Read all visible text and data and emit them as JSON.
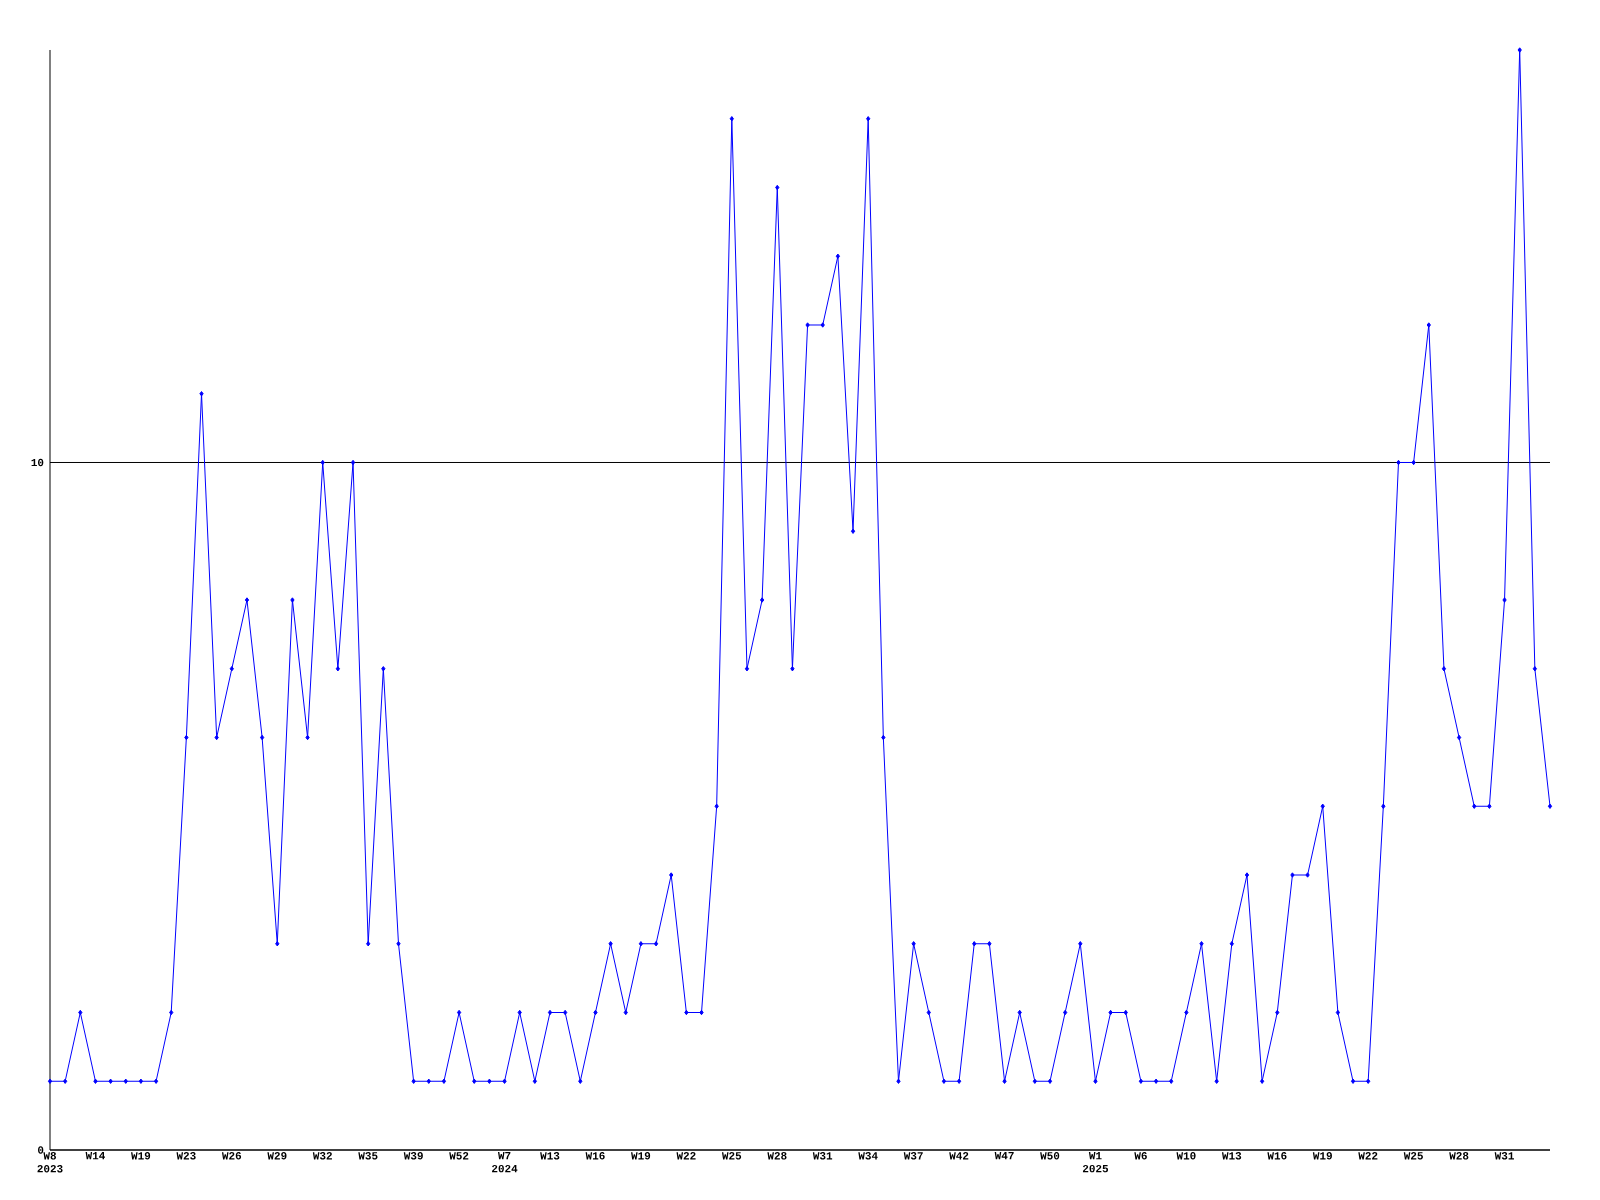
{
  "chart_data": {
    "type": "line",
    "color": "#0000ff",
    "marker": "diamond",
    "grid": "y",
    "ylim": [
      0,
      16
    ],
    "yticks": [
      0,
      10
    ],
    "categories": [
      "W8 2023",
      null,
      null,
      "W14",
      null,
      null,
      "W19",
      null,
      null,
      "W23",
      null,
      null,
      "W26",
      null,
      null,
      "W29",
      null,
      null,
      "W32",
      null,
      null,
      "W35",
      null,
      null,
      "W39",
      null,
      null,
      "W52",
      null,
      null,
      "W7 2024",
      null,
      null,
      "W13",
      null,
      null,
      "W16",
      null,
      null,
      "W19",
      null,
      null,
      "W22",
      null,
      null,
      "W25",
      null,
      null,
      "W28",
      null,
      null,
      "W31",
      null,
      null,
      "W34",
      null,
      null,
      "W37",
      null,
      null,
      "W42",
      null,
      null,
      "W47",
      null,
      null,
      "W50",
      null,
      null,
      "W1 2025",
      null,
      null,
      "W6",
      null,
      null,
      "W10",
      null,
      null,
      "W13",
      null,
      null,
      "W16",
      null,
      null,
      "W19",
      null,
      null,
      "W22",
      null,
      null,
      "W25",
      null,
      null,
      "W28",
      null,
      null,
      "W31",
      null,
      null,
      null
    ],
    "values": [
      1,
      1,
      2,
      1,
      1,
      1,
      1,
      1,
      2,
      6,
      11,
      6,
      7,
      8,
      6,
      3,
      8,
      6,
      10,
      7,
      10,
      3,
      7,
      3,
      1,
      1,
      1,
      2,
      1,
      1,
      1,
      2,
      1,
      2,
      2,
      1,
      2,
      3,
      2,
      3,
      3,
      4,
      2,
      2,
      5,
      15,
      7,
      8,
      14,
      7,
      12,
      12,
      13,
      9,
      15,
      6,
      1,
      3,
      2,
      1,
      1,
      3,
      3,
      1,
      2,
      1,
      1,
      2,
      3,
      1,
      2,
      2,
      1,
      1,
      1,
      2,
      3,
      1,
      3,
      4,
      1,
      2,
      4,
      4,
      5,
      2,
      1,
      1,
      5,
      10,
      10,
      12,
      7,
      6,
      5,
      5,
      8,
      16,
      7,
      5
    ]
  }
}
